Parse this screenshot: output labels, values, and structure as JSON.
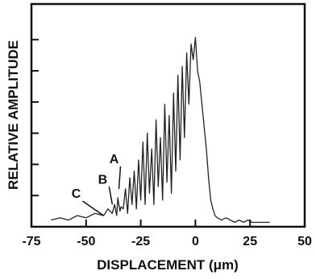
{
  "chart_data": {
    "type": "line",
    "title": "",
    "xlabel": "DISPLACEMENT (μm)",
    "ylabel": "RELATIVE AMPLITUDE",
    "xlim": [
      -75,
      50
    ],
    "ylim": [
      0,
      1
    ],
    "x_ticks": [
      -75,
      -50,
      -25,
      0,
      25,
      50
    ],
    "x_tick_labels": [
      "-75",
      "-50",
      "-25",
      "0",
      "25",
      "50"
    ],
    "y_tick_labels_shown": false,
    "grid": false,
    "series": [
      {
        "x": [
          -66,
          -62,
          -58,
          -54,
          -50,
          -46,
          -42,
          -40,
          -38,
          -37,
          -36,
          -35.5,
          -34.5,
          -34,
          -33,
          -32,
          -31,
          -30,
          -29,
          -28,
          -27,
          -26,
          -25,
          -24,
          -23,
          -22,
          -21,
          -20,
          -19,
          -18,
          -17,
          -16,
          -15,
          -14,
          -13,
          -12,
          -11,
          -10,
          -9,
          -8,
          -7,
          -6,
          -5,
          -4,
          -3,
          -2,
          -1,
          0,
          1,
          2,
          3,
          4,
          5,
          6,
          7,
          8,
          9,
          10,
          12,
          14,
          16,
          18,
          20,
          22,
          24,
          26,
          28,
          30,
          32,
          34
        ],
        "y": [
          0.03,
          0.04,
          0.03,
          0.05,
          0.04,
          0.06,
          0.05,
          0.08,
          0.06,
          0.1,
          0.05,
          0.13,
          0.07,
          0.09,
          0.08,
          0.17,
          0.06,
          0.22,
          0.1,
          0.25,
          0.08,
          0.3,
          0.12,
          0.38,
          0.1,
          0.42,
          0.15,
          0.35,
          0.1,
          0.48,
          0.18,
          0.4,
          0.12,
          0.55,
          0.2,
          0.5,
          0.15,
          0.6,
          0.25,
          0.68,
          0.3,
          0.72,
          0.4,
          0.78,
          0.55,
          0.82,
          0.75,
          0.85,
          0.7,
          0.65,
          0.55,
          0.45,
          0.35,
          0.22,
          0.12,
          0.08,
          0.05,
          0.04,
          0.03,
          0.04,
          0.03,
          0.02,
          0.03,
          0.02,
          0.03,
          0.02,
          0.02,
          0.02,
          0.02,
          0.02
        ]
      }
    ],
    "annotations": [
      {
        "label": "A",
        "x": -35,
        "y": 0.17
      },
      {
        "label": "B",
        "x": -38,
        "y": 0.1
      },
      {
        "label": "C",
        "x": -42,
        "y": 0.05
      }
    ]
  }
}
